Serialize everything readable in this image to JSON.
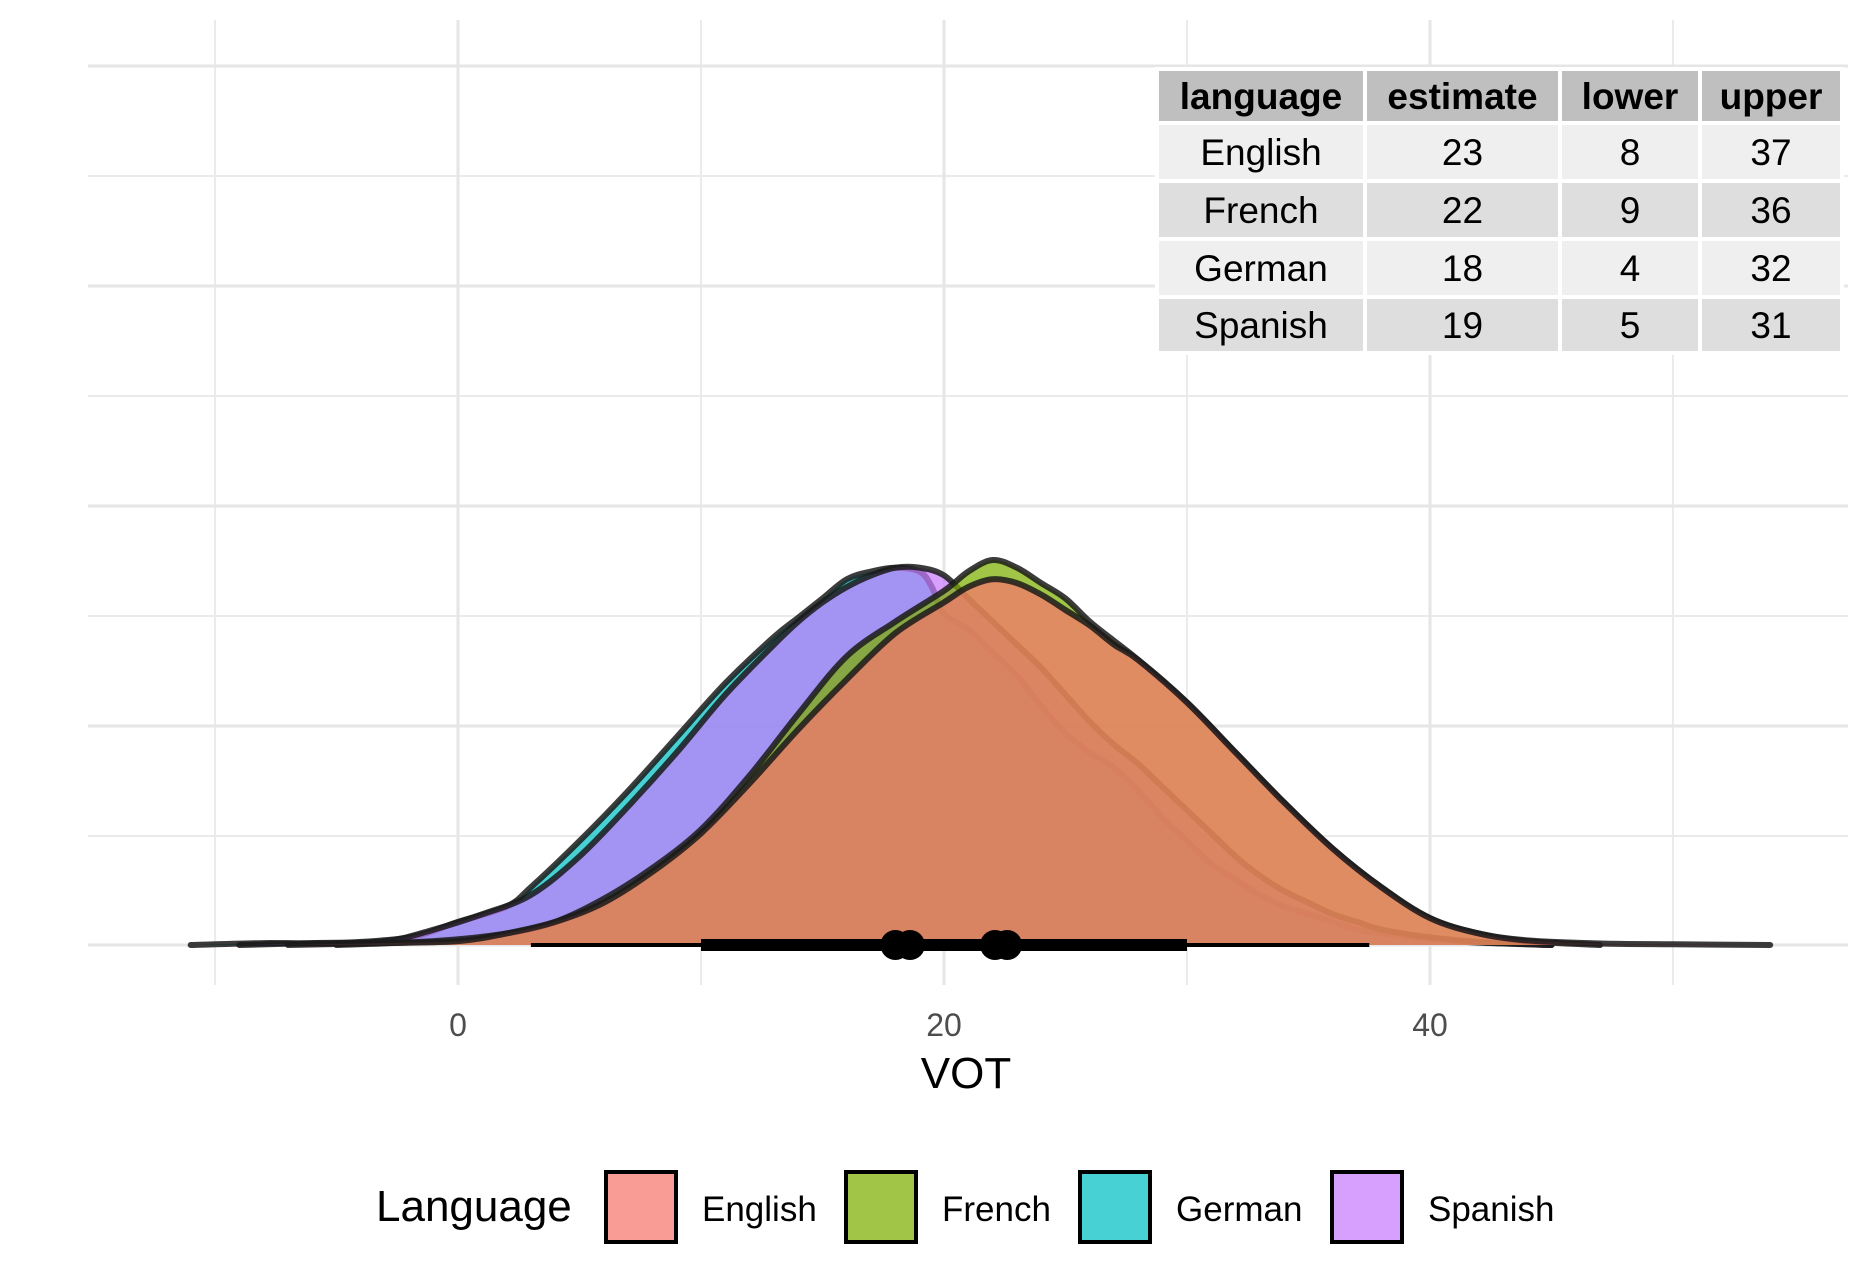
{
  "chart_data": {
    "type": "area",
    "title": "",
    "xlabel": "VOT",
    "ylabel": "",
    "xlim": [
      -50,
      90
    ],
    "x_ticks": [
      0,
      20,
      40
    ],
    "y_tick_labels_shown": false,
    "grid": true,
    "legend": {
      "title": "Language",
      "placement": "bottom",
      "entries": [
        "English",
        "French",
        "German",
        "Spanish"
      ]
    },
    "series": [
      {
        "name": "German",
        "color": "#00BFC4",
        "opacity": 0.72,
        "x": [
          -11,
          -8,
          -5,
          -2,
          0,
          2,
          3,
          5,
          7,
          9,
          11,
          13,
          14,
          15,
          16,
          17,
          18,
          19,
          19.5,
          20,
          21,
          22,
          23,
          24,
          25,
          26,
          27,
          28,
          29,
          30,
          31,
          32,
          33,
          34,
          35,
          36,
          37,
          38,
          40,
          42,
          45
        ],
        "density": [
          0,
          0.005,
          0.005,
          0.02,
          0.06,
          0.1,
          0.15,
          0.27,
          0.4,
          0.54,
          0.68,
          0.8,
          0.85,
          0.9,
          0.95,
          0.97,
          0.98,
          0.97,
          0.93,
          0.86,
          0.82,
          0.76,
          0.7,
          0.62,
          0.55,
          0.5,
          0.46,
          0.4,
          0.33,
          0.27,
          0.21,
          0.17,
          0.13,
          0.1,
          0.08,
          0.06,
          0.04,
          0.03,
          0.015,
          0.006,
          0
        ]
      },
      {
        "name": "Spanish",
        "color": "#C77CFF",
        "opacity": 0.72,
        "x": [
          -9,
          -6,
          -3,
          -1,
          1,
          3,
          5,
          7,
          9,
          11,
          13,
          14,
          15,
          16,
          17,
          18,
          19,
          20,
          21,
          22,
          23,
          24,
          25,
          26,
          27,
          28,
          29,
          30,
          31,
          32,
          33,
          34,
          35,
          36,
          37,
          38,
          40,
          42,
          45
        ],
        "density": [
          0,
          0.005,
          0.01,
          0.04,
          0.08,
          0.13,
          0.23,
          0.36,
          0.5,
          0.65,
          0.78,
          0.84,
          0.89,
          0.93,
          0.96,
          0.98,
          0.98,
          0.96,
          0.9,
          0.84,
          0.78,
          0.72,
          0.65,
          0.58,
          0.52,
          0.47,
          0.41,
          0.35,
          0.29,
          0.23,
          0.18,
          0.14,
          0.11,
          0.08,
          0.06,
          0.04,
          0.02,
          0.008,
          0
        ]
      },
      {
        "name": "French",
        "color": "#7CAE00",
        "opacity": 0.72,
        "x": [
          -5,
          -1,
          2,
          4,
          6,
          8,
          10,
          12,
          14,
          16,
          18,
          20,
          21,
          22,
          23,
          24,
          25,
          26,
          27,
          28,
          30,
          32,
          34,
          36,
          38,
          40,
          42,
          44,
          47
        ],
        "density": [
          0,
          0.01,
          0.03,
          0.06,
          0.12,
          0.2,
          0.3,
          0.44,
          0.6,
          0.75,
          0.84,
          0.92,
          0.97,
          1.0,
          0.98,
          0.94,
          0.9,
          0.84,
          0.79,
          0.74,
          0.63,
          0.5,
          0.37,
          0.25,
          0.15,
          0.07,
          0.03,
          0.01,
          0
        ]
      },
      {
        "name": "English",
        "color": "#F8766D",
        "opacity": 0.72,
        "x": [
          -7,
          -3,
          0,
          2,
          4,
          6,
          8,
          10,
          12,
          14,
          16,
          18,
          20,
          21,
          22,
          23,
          24,
          25,
          26,
          27,
          28,
          30,
          32,
          34,
          36,
          38,
          40,
          42,
          44,
          47,
          50,
          54
        ],
        "density": [
          0,
          0.005,
          0.01,
          0.03,
          0.06,
          0.11,
          0.19,
          0.29,
          0.42,
          0.56,
          0.69,
          0.81,
          0.89,
          0.93,
          0.95,
          0.94,
          0.91,
          0.87,
          0.83,
          0.78,
          0.74,
          0.63,
          0.5,
          0.37,
          0.25,
          0.15,
          0.07,
          0.03,
          0.012,
          0.004,
          0.002,
          0
        ]
      }
    ],
    "intervals": [
      {
        "name": "English",
        "point": 22.6,
        "inner": [
          11.5,
          30
        ],
        "outer": [
          4,
          37.5
        ]
      },
      {
        "name": "French",
        "point": 22.1,
        "inner": [
          11,
          30
        ],
        "outer": [
          5,
          36
        ]
      },
      {
        "name": "German",
        "point": 18.0,
        "inner": [
          10,
          28
        ],
        "outer": [
          3,
          35
        ]
      },
      {
        "name": "Spanish",
        "point": 18.6,
        "inner": [
          11,
          28
        ],
        "outer": [
          4,
          35
        ]
      }
    ]
  },
  "table": {
    "headers": [
      "language",
      "estimate",
      "lower",
      "upper"
    ],
    "rows": [
      [
        "English",
        "23",
        "8",
        "37"
      ],
      [
        "French",
        "22",
        "9",
        "36"
      ],
      [
        "German",
        "18",
        "4",
        "32"
      ],
      [
        "Spanish",
        "19",
        "5",
        "31"
      ]
    ]
  }
}
